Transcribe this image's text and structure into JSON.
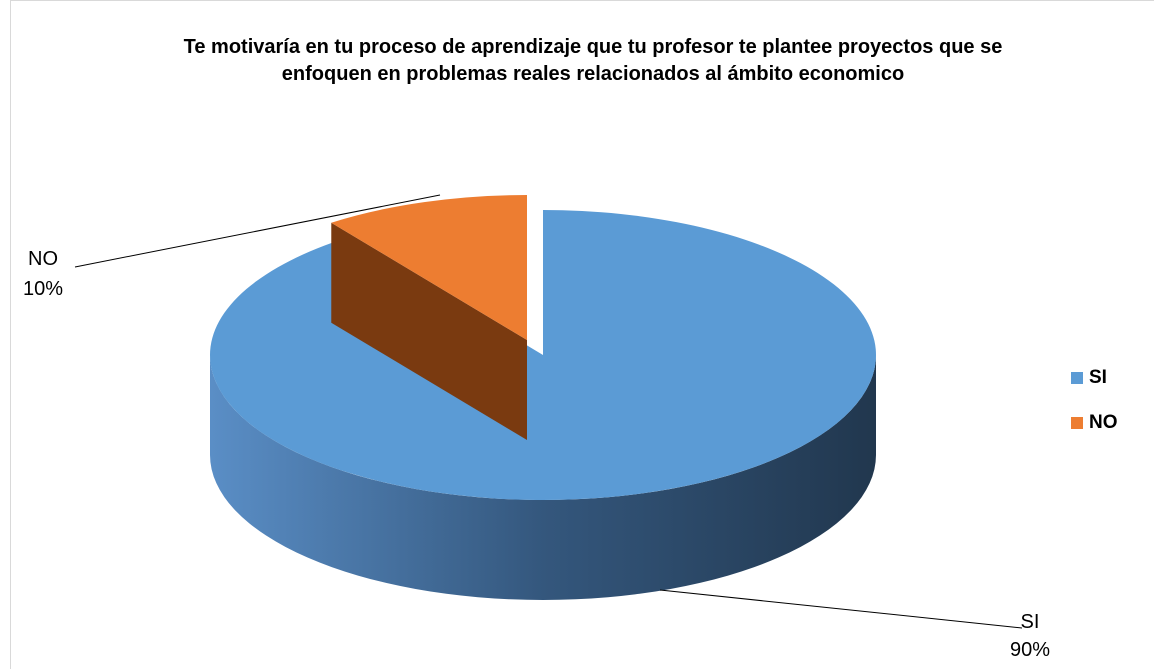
{
  "chart_data": {
    "type": "pie",
    "title": "Te motivaría en tu proceso de aprendizaje que tu profesor te plantee proyectos que se enfoquen en  problemas reales relacionados al ámbito economico",
    "categories": [
      "SI",
      "NO"
    ],
    "values": [
      90,
      10
    ],
    "value_labels": [
      "90%",
      "10%"
    ],
    "colors": [
      "#5b9bd5",
      "#ed7d31"
    ],
    "legend": "right"
  }
}
